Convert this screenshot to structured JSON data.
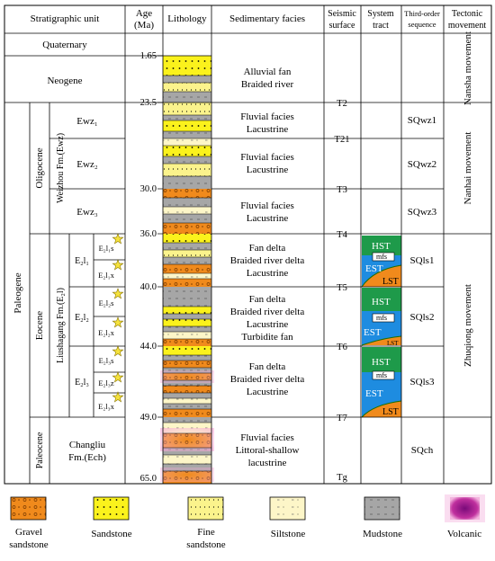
{
  "headers": {
    "strat": "Stratigraphic unit",
    "age_1": "Age",
    "age_2": "(Ma)",
    "lith": "Lithology",
    "facies": "Sedimentary facies",
    "seismic_1": "Seismic",
    "seismic_2": "surface",
    "system_1": "System",
    "system_2": "tract",
    "third_1": "Third-order",
    "third_2": "sequence",
    "tect_1": "Tectonic",
    "tect_2": "movement"
  },
  "units": {
    "quaternary": "Quaternary",
    "neogene": "Neogene",
    "paleogene": "Paleogene",
    "oligocene": "Oligocene",
    "eocene": "Eocene",
    "paleocene": "Paleocene",
    "weizhou": "Weizhou Fm.(Ewz)",
    "liushagang": "Liushagang Fm.(E₂l)",
    "changliu_1": "Changliu",
    "changliu_2": "Fm.(Ech)",
    "ewz1": "Ewz₁",
    "ewz2": "Ewz₂",
    "ewz3": "Ewz₃",
    "e2l1": "E₂l₁",
    "e2l2": "E₂l₂",
    "e2l3": "E₂l₃",
    "e2l1s": "E₂l₁s",
    "e2l1x": "E₂l₁x",
    "e2l2s": "E₂l₂s",
    "e2l2x": "E₂l₂x",
    "e2l3s": "E₂l₃s",
    "e2l3z": "E₂l₃z",
    "e2l3x": "E₂l₃x"
  },
  "ages": [
    "1.65",
    "23.5",
    "30.0",
    "36.0",
    "40.0",
    "44.0",
    "49.0",
    "65.0"
  ],
  "facies": {
    "f1": [
      "Alluvial fan",
      "Braided river"
    ],
    "f2": [
      "Fluvial facies",
      "Lacustrine"
    ],
    "f3": [
      "Fluvial facies",
      "Lacustrine"
    ],
    "f4": [
      "Fluvial facies",
      "Lacustrine"
    ],
    "f5": [
      "Fan delta",
      "Braided river delta",
      "Lacustrine"
    ],
    "f6": [
      "Fan delta",
      "Braided river delta",
      "Lacustrine",
      "Turbidite fan"
    ],
    "f7": [
      "Fan delta",
      "Braided river delta",
      "Lacustrine"
    ],
    "f8": [
      "Fluvial facies",
      "Littoral-shallow",
      "lacustrine"
    ]
  },
  "seismic": [
    "T2",
    "T21",
    "T3",
    "T4",
    "T5",
    "T6",
    "T7",
    "Tg"
  ],
  "system_tracts": {
    "hst": "HST",
    "mfs": "mfs",
    "est": "EST",
    "lst": "LST"
  },
  "sequences": [
    "SQwz1",
    "SQwz2",
    "SQwz3",
    "SQls1",
    "SQls2",
    "SQls3",
    "SQch"
  ],
  "tectonic": {
    "nansha": "Nansha movement",
    "nanhai": "Nanhai movement",
    "zhuqiong": "Zhuqiong movement"
  },
  "legend": {
    "gravel_1": "Gravel",
    "gravel_2": "sandstone",
    "sandstone": "Sandstone",
    "fine_1": "Fine",
    "fine_2": "sandstone",
    "siltstone": "Siltstone",
    "mudstone": "Mudstone",
    "volcanic": "Volcanic"
  },
  "colors": {
    "gravel": "#f08a1c",
    "sandstone": "#fbf21c",
    "fine": "#fbf38c",
    "siltstone": "#fdf6c8",
    "mudstone": "#a6a6a6",
    "volcanic": "#a21c8c",
    "hst": "#1e9a4a",
    "est": "#1e8ce0",
    "lst": "#f08a1c",
    "star": "#f5e23c"
  }
}
